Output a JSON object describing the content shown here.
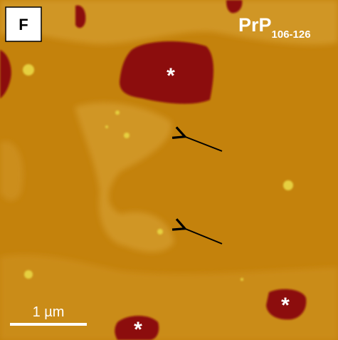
{
  "panel_label": "F",
  "title": {
    "main": "PrP",
    "subscript": "106-126"
  },
  "annotations": [
    "*",
    "*",
    "*"
  ],
  "scale_bar": {
    "label": "1 µm"
  }
}
